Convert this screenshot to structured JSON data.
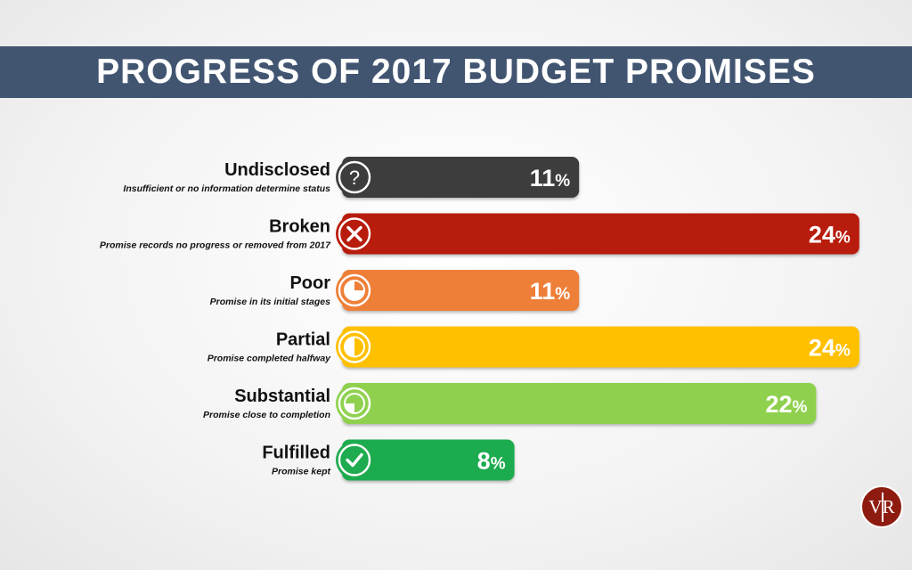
{
  "title": "PROGRESS OF 2017 BUDGET PROMISES",
  "logo_text": "VR",
  "chart_data": {
    "type": "bar",
    "orientation": "horizontal",
    "title": "PROGRESS OF 2017 BUDGET PROMISES",
    "unit": "%",
    "categories": [
      "Undisclosed",
      "Broken",
      "Poor",
      "Partial",
      "Substantial",
      "Fulfilled"
    ],
    "descriptions": [
      "Insufficient or no information determine status",
      "Promise records no progress or removed from 2017",
      "Promise in its initial stages",
      "Promise completed halfway",
      "Promise close to completion",
      "Promise kept"
    ],
    "values": [
      11,
      24,
      11,
      24,
      22,
      8
    ],
    "colors": [
      "#3d3d3d",
      "#b81c0c",
      "#ee7f37",
      "#ffc000",
      "#8fd14f",
      "#1fab4f"
    ],
    "icons": [
      "question-icon",
      "x-icon",
      "quarter-pie-icon",
      "half-pie-icon",
      "three-quarter-pie-icon",
      "check-icon"
    ],
    "grid": false,
    "legend": "none"
  }
}
